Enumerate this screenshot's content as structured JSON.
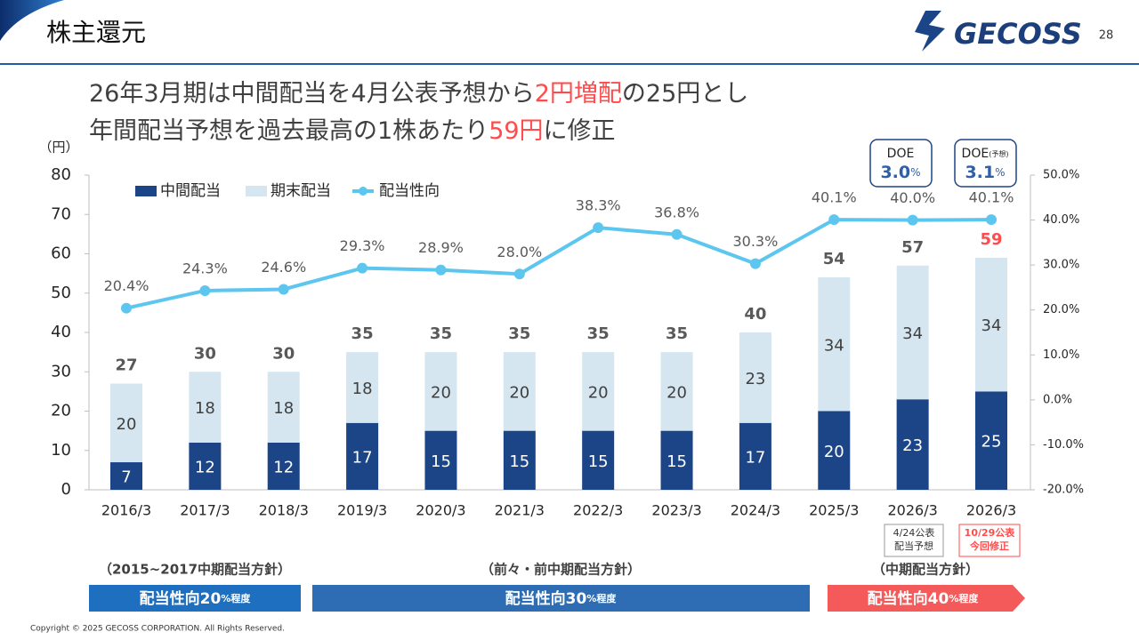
{
  "header": {
    "title": "株主還元",
    "page_number": "28",
    "logo": "GECOSS"
  },
  "headline": {
    "line1": [
      "26年3月期は中間配当を4月公表予想から",
      "2円増配",
      "の25円とし"
    ],
    "line2": [
      "年間配当予想を過去最高の1株あたり",
      "59円",
      "に修正"
    ]
  },
  "chart_data": {
    "type": "bar",
    "stacked": true,
    "y_unit": "（円）",
    "categories": [
      "2016/3",
      "2017/3",
      "2018/3",
      "2019/3",
      "2020/3",
      "2021/3",
      "2022/3",
      "2023/3",
      "2024/3",
      "2025/3",
      "2026/3",
      "2026/3"
    ],
    "series": [
      {
        "name": "中間配当",
        "color": "#1c4587",
        "values": [
          7,
          12,
          12,
          17,
          15,
          15,
          15,
          15,
          17,
          20,
          23,
          25
        ]
      },
      {
        "name": "期末配当",
        "color": "#d5e6f0",
        "values": [
          20,
          18,
          18,
          18,
          20,
          20,
          20,
          20,
          23,
          34,
          34,
          34
        ]
      },
      {
        "name": "配当性向",
        "type": "line",
        "axis": "y2",
        "color": "#5cc6ee",
        "values": [
          20.4,
          24.3,
          24.6,
          29.3,
          28.9,
          28.0,
          38.3,
          36.8,
          30.3,
          40.1,
          40.0,
          40.1
        ],
        "value_labels": [
          "20.4%",
          "24.3%",
          "24.6%",
          "29.3%",
          "28.9%",
          "28.0%",
          "38.3%",
          "36.8%",
          "30.3%",
          "40.1%",
          "40.0%",
          "40.1%"
        ]
      }
    ],
    "totals": [
      27,
      30,
      30,
      35,
      35,
      35,
      35,
      35,
      40,
      54,
      57,
      59
    ],
    "ylim": [
      0,
      80
    ],
    "yticks": [
      0,
      10,
      20,
      30,
      40,
      50,
      60,
      70,
      80
    ],
    "y2lim": [
      -20,
      50
    ],
    "y2ticks": [
      {
        "value": -20,
        "label": "-20.0%"
      },
      {
        "value": -10,
        "label": "-10.0%"
      },
      {
        "value": 0,
        "label": "0.0%"
      },
      {
        "value": 10,
        "label": "10.0%"
      },
      {
        "value": 20,
        "label": "20.0%"
      },
      {
        "value": 30,
        "label": "30.0%"
      },
      {
        "value": 40,
        "label": "40.0%"
      },
      {
        "value": 50,
        "label": "50.0%"
      }
    ],
    "grid": false,
    "legend": "top-left"
  },
  "doe": [
    {
      "label": "DOE",
      "value": "3.0",
      "unit": "%"
    },
    {
      "label": "DOE",
      "note": "(予想)",
      "value": "3.1",
      "unit": "%"
    }
  ],
  "forecast_notes": [
    [
      "4/24公表",
      "配当予想"
    ],
    [
      "10/29公表",
      "今回修正"
    ]
  ],
  "policies": [
    {
      "period": "（2015~2017中期配当方針）",
      "main": "配当性向20",
      "suffix": "%程度"
    },
    {
      "period": "（前々・前中期配当方針）",
      "main": "配当性向30",
      "suffix": "%程度"
    },
    {
      "period": "（中期配当方針）",
      "main": "配当性向40",
      "suffix": "%程度"
    }
  ],
  "copyright": "Copyright © 2025 GECOSS CORPORATION. All Rights Reserved."
}
